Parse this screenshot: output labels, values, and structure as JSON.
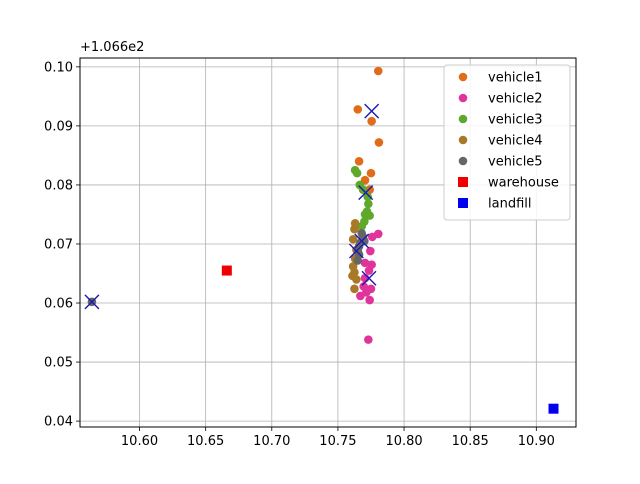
{
  "chart_data": {
    "type": "scatter",
    "title": "",
    "xlabel": "",
    "ylabel": "",
    "y_offset_label": "+1.066e2",
    "xlim": [
      10.555,
      10.93
    ],
    "ylim": [
      0.039,
      0.1015
    ],
    "xticks": [
      10.55,
      10.6,
      10.65,
      10.7,
      10.75,
      10.8,
      10.85,
      10.9
    ],
    "xtick_labels": [
      "10.55",
      "10.60",
      "10.65",
      "10.70",
      "10.75",
      "10.80",
      "10.85",
      "10.90"
    ],
    "yticks": [
      0.04,
      0.05,
      0.06,
      0.07,
      0.08,
      0.09,
      0.1
    ],
    "ytick_labels": [
      "0.04",
      "0.05",
      "0.06",
      "0.07",
      "0.08",
      "0.09",
      "0.10"
    ],
    "grid": true,
    "legend_position": "top-right",
    "series": [
      {
        "name": "vehicle1",
        "marker": "circle",
        "color": "#e06c1a",
        "points": [
          [
            10.7805,
            0.0993
          ],
          [
            10.765,
            0.0928
          ],
          [
            10.7755,
            0.0908
          ],
          [
            10.781,
            0.0872
          ],
          [
            10.766,
            0.084
          ],
          [
            10.775,
            0.082
          ],
          [
            10.7705,
            0.0808
          ],
          [
            10.774,
            0.0792
          ]
        ]
      },
      {
        "name": "vehicle2",
        "marker": "circle",
        "color": "#e0349a",
        "points": [
          [
            10.7805,
            0.0717
          ],
          [
            10.776,
            0.0712
          ],
          [
            10.7745,
            0.0688
          ],
          [
            10.7755,
            0.0665
          ],
          [
            10.7705,
            0.0668
          ],
          [
            10.7735,
            0.0655
          ],
          [
            10.7705,
            0.0642
          ],
          [
            10.7695,
            0.0628
          ],
          [
            10.775,
            0.0624
          ],
          [
            10.7715,
            0.0618
          ],
          [
            10.767,
            0.0612
          ],
          [
            10.774,
            0.0605
          ],
          [
            10.773,
            0.0538
          ]
        ]
      },
      {
        "name": "vehicle3",
        "marker": "circle",
        "color": "#5ea82a",
        "points": [
          [
            10.763,
            0.0825
          ],
          [
            10.7645,
            0.082
          ],
          [
            10.7665,
            0.08
          ],
          [
            10.769,
            0.0792
          ],
          [
            10.7725,
            0.078
          ],
          [
            10.773,
            0.0768
          ],
          [
            10.772,
            0.0755
          ],
          [
            10.7705,
            0.075
          ],
          [
            10.774,
            0.0748
          ],
          [
            10.77,
            0.0738
          ],
          [
            10.768,
            0.073
          ]
        ]
      },
      {
        "name": "vehicle4",
        "marker": "circle",
        "color": "#a87a28",
        "points": [
          [
            10.763,
            0.0735
          ],
          [
            10.7625,
            0.0725
          ],
          [
            10.7615,
            0.0708
          ],
          [
            10.764,
            0.069
          ],
          [
            10.763,
            0.0675
          ],
          [
            10.7615,
            0.0662
          ],
          [
            10.7625,
            0.0652
          ],
          [
            10.761,
            0.0646
          ],
          [
            10.764,
            0.064
          ],
          [
            10.7625,
            0.0624
          ]
        ]
      },
      {
        "name": "vehicle5",
        "marker": "circle",
        "color": "#666666",
        "points": [
          [
            10.768,
            0.0718
          ],
          [
            10.769,
            0.0712
          ],
          [
            10.77,
            0.0705
          ],
          [
            10.767,
            0.0702
          ],
          [
            10.766,
            0.0696
          ],
          [
            10.765,
            0.0688
          ],
          [
            10.766,
            0.0682
          ],
          [
            10.765,
            0.0672
          ],
          [
            10.564,
            0.0602
          ]
        ]
      },
      {
        "name": "warehouse",
        "marker": "square",
        "color": "#ee0000",
        "points": [
          [
            10.666,
            0.0655
          ]
        ]
      },
      {
        "name": "landfill",
        "marker": "square",
        "color": "#0000ee",
        "points": [
          [
            10.913,
            0.0421
          ]
        ]
      }
    ],
    "cross_markers": {
      "color": "#1a1ab4",
      "points": [
        [
          10.7755,
          0.0925
        ],
        [
          10.771,
          0.0787
        ],
        [
          10.768,
          0.0705
        ],
        [
          10.764,
          0.0688
        ],
        [
          10.7735,
          0.0642
        ],
        [
          10.564,
          0.0602
        ]
      ]
    }
  }
}
